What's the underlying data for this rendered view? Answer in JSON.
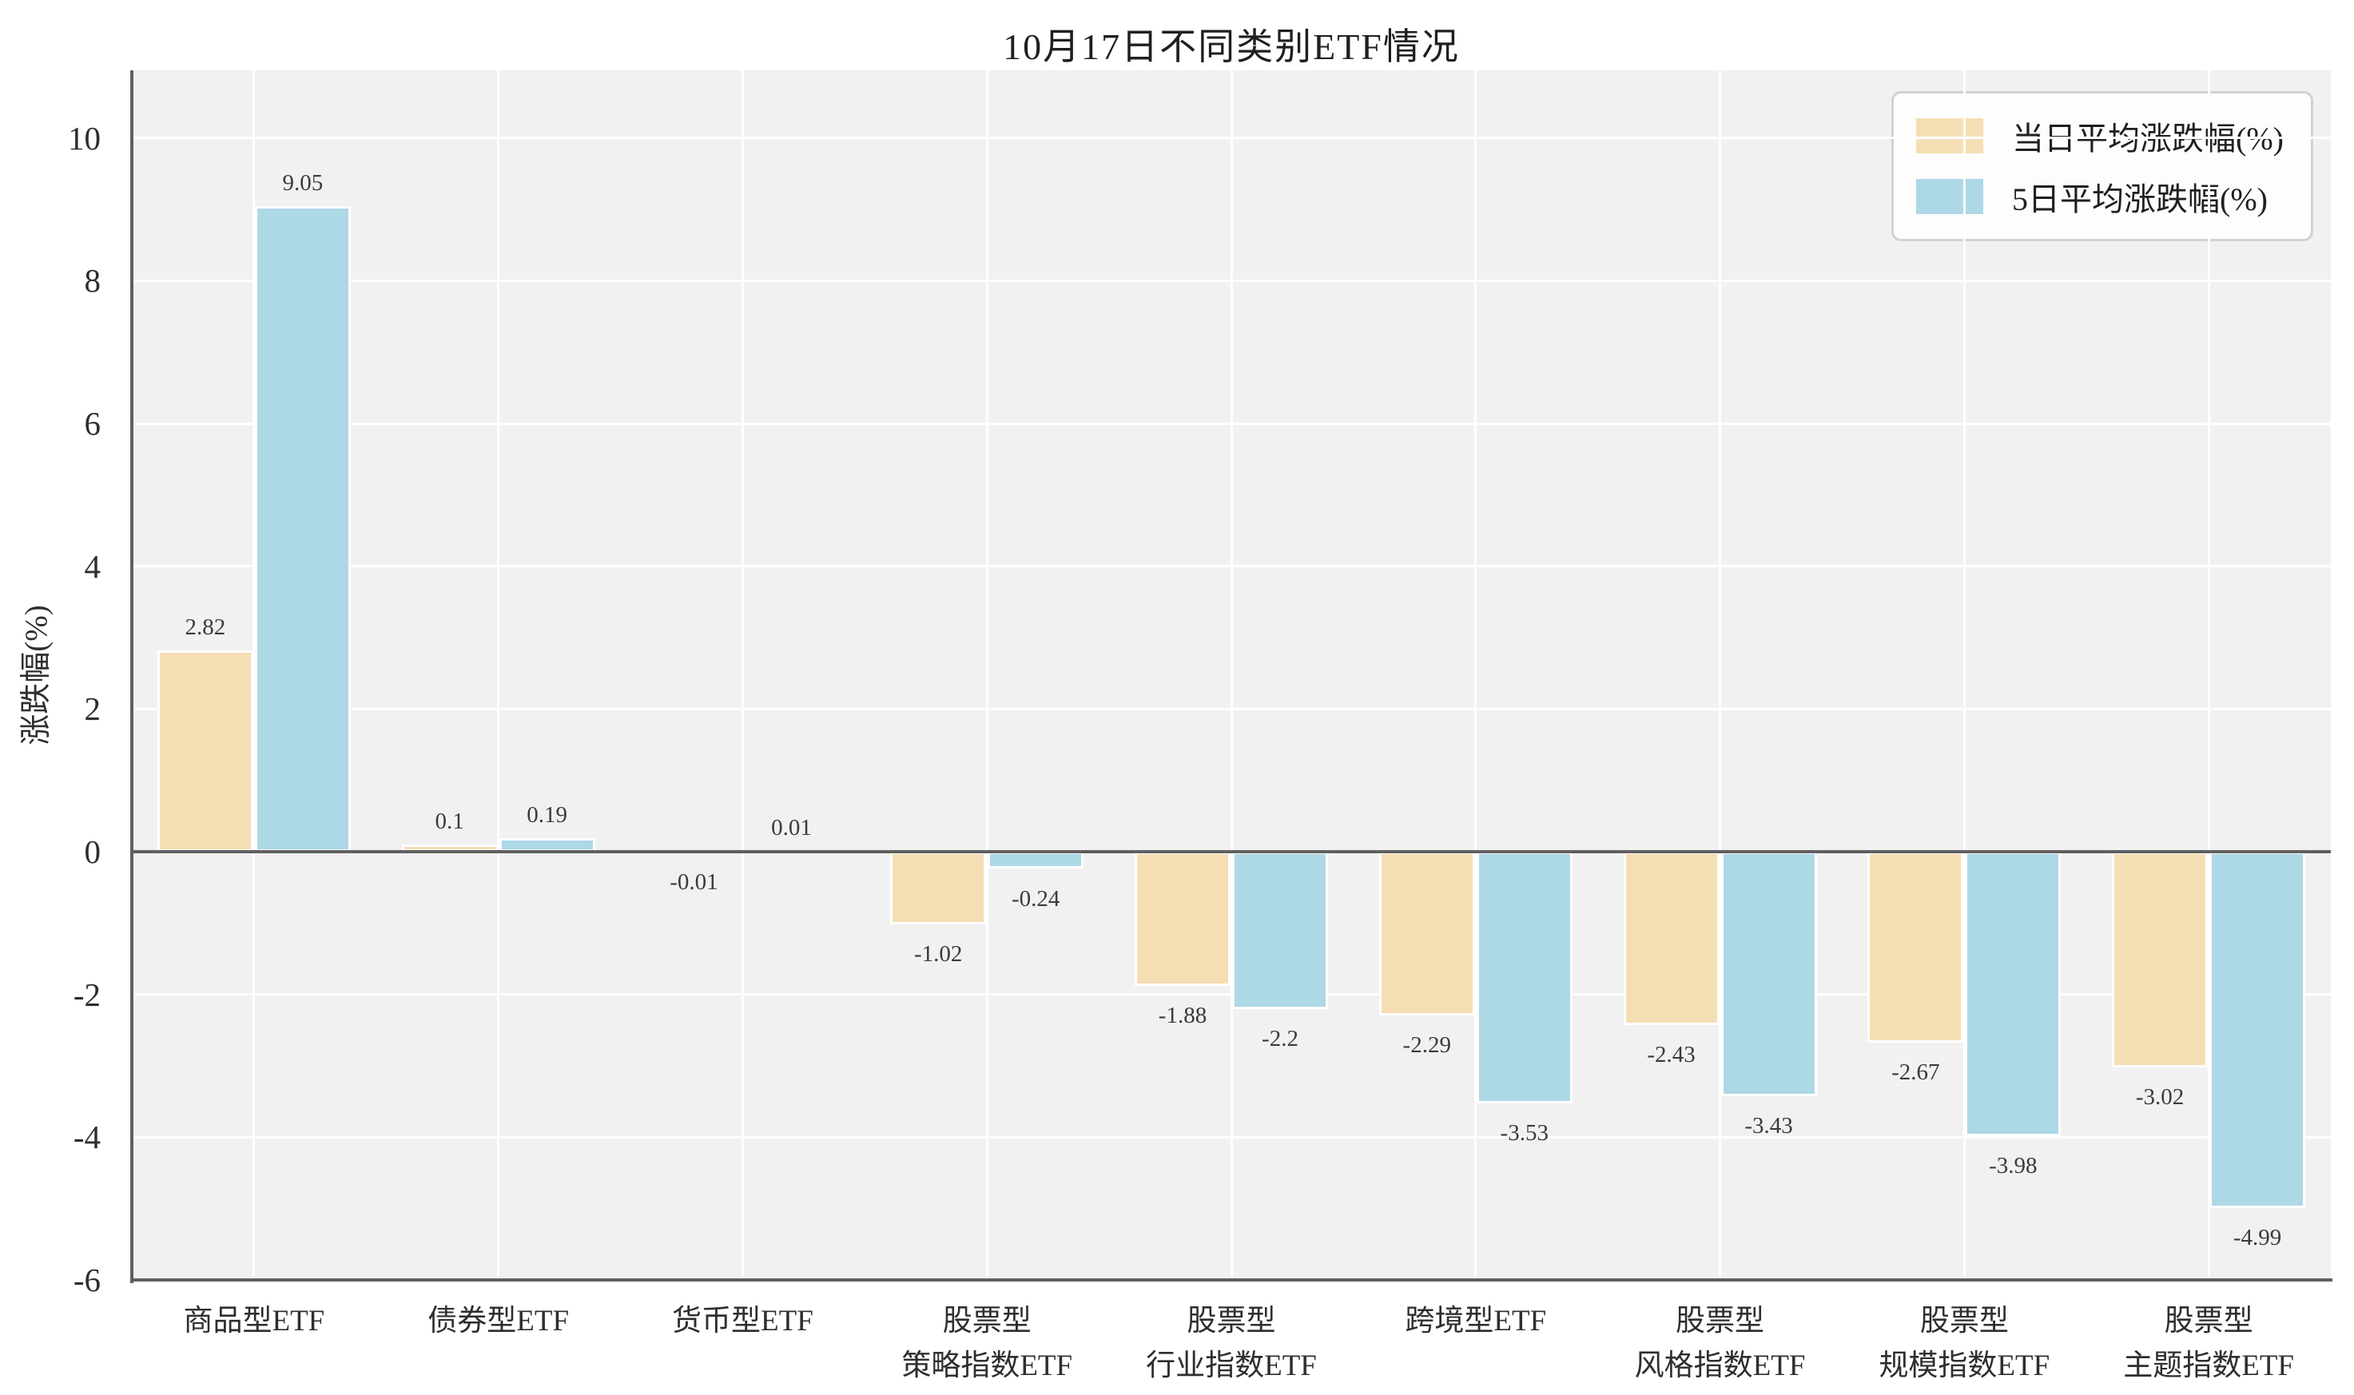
{
  "chart_data": {
    "type": "bar",
    "title": "10月17日不同类别ETF情况",
    "ylabel": "涨跌幅(%)",
    "categories": [
      "商品型ETF",
      "债券型ETF",
      "货币型ETF",
      "股票型\n策略指数ETF",
      "股票型\n行业指数ETF",
      "跨境型ETF",
      "股票型\n风格指数ETF",
      "股票型\n规模指数ETF",
      "股票型\n主题指数ETF"
    ],
    "series": [
      {
        "name": "当日平均涨跌幅(%)",
        "color": "#f5deb3",
        "values": [
          2.82,
          0.1,
          -0.01,
          -1.02,
          -1.88,
          -2.29,
          -2.43,
          -2.67,
          -3.02
        ]
      },
      {
        "name": "5日平均涨跌幅(%)",
        "color": "#add8e6",
        "values": [
          9.05,
          0.19,
          0.01,
          -0.24,
          -2.2,
          -3.53,
          -3.43,
          -3.98,
          -4.99
        ]
      }
    ],
    "yticks": [
      10,
      8,
      6,
      4,
      2,
      0,
      -2,
      -4,
      -6
    ],
    "ylim": [
      -6,
      10.95
    ],
    "grid": true,
    "legend_position": "upper right",
    "plot_bg": "#f1f1f1",
    "grid_color": "#ffffff",
    "spine_color": "#606060",
    "bar_edge_color": "#ffffff"
  }
}
